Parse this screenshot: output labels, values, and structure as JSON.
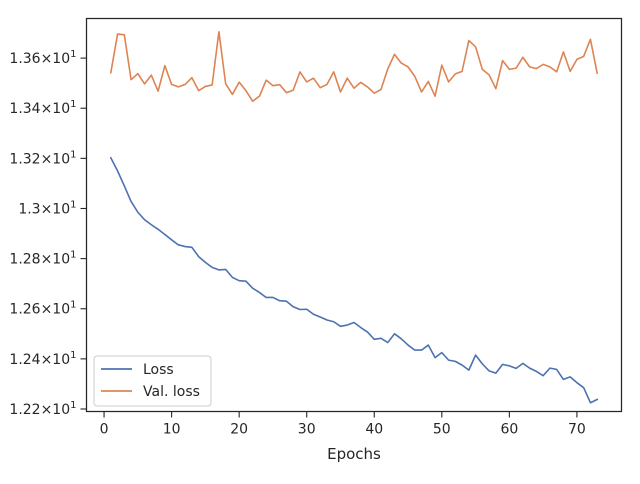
{
  "chart_data": {
    "type": "line",
    "title": "",
    "xlabel": "Epochs",
    "ylabel": "",
    "xlim": [
      -2.6,
      76.6
    ],
    "ylim": [
      12.19,
      13.758
    ],
    "x_ticks": [
      0,
      10,
      20,
      30,
      40,
      50,
      60,
      70
    ],
    "y_ticks": [
      {
        "value": 12.2,
        "mant": "1.22",
        "exp": "1"
      },
      {
        "value": 12.4,
        "mant": "1.24",
        "exp": "1"
      },
      {
        "value": 12.6,
        "mant": "1.26",
        "exp": "1"
      },
      {
        "value": 12.8,
        "mant": "1.28",
        "exp": "1"
      },
      {
        "value": 13.0,
        "mant": "1.3",
        "exp": "1"
      },
      {
        "value": 13.2,
        "mant": "1.32",
        "exp": "1"
      },
      {
        "value": 13.4,
        "mant": "1.34",
        "exp": "1"
      },
      {
        "value": 13.6,
        "mant": "1.36",
        "exp": "1"
      }
    ],
    "legend_location": "lower-left",
    "grid": false,
    "x": [
      1,
      2,
      3,
      4,
      5,
      6,
      7,
      8,
      9,
      10,
      11,
      12,
      13,
      14,
      15,
      16,
      17,
      18,
      19,
      20,
      21,
      22,
      23,
      24,
      25,
      26,
      27,
      28,
      29,
      30,
      31,
      32,
      33,
      34,
      35,
      36,
      37,
      38,
      39,
      40,
      41,
      42,
      43,
      44,
      45,
      46,
      47,
      48,
      49,
      50,
      51,
      52,
      53,
      54,
      55,
      56,
      57,
      58,
      59,
      60,
      61,
      62,
      63,
      64,
      65,
      66,
      67,
      68,
      69,
      70,
      71,
      72,
      73
    ],
    "series": [
      {
        "name": "Loss",
        "color": "#4c72b0",
        "values": [
          13.202,
          13.15,
          13.09,
          13.028,
          12.985,
          12.955,
          12.935,
          12.917,
          12.896,
          12.875,
          12.855,
          12.848,
          12.845,
          12.808,
          12.785,
          12.765,
          12.755,
          12.757,
          12.725,
          12.712,
          12.71,
          12.682,
          12.665,
          12.645,
          12.645,
          12.632,
          12.63,
          12.608,
          12.597,
          12.598,
          12.578,
          12.567,
          12.555,
          12.548,
          12.53,
          12.535,
          12.545,
          12.525,
          12.507,
          12.478,
          12.482,
          12.465,
          12.5,
          12.48,
          12.455,
          12.435,
          12.435,
          12.455,
          12.405,
          12.425,
          12.395,
          12.39,
          12.375,
          12.355,
          12.415,
          12.38,
          12.352,
          12.343,
          12.378,
          12.372,
          12.362,
          12.382,
          12.363,
          12.35,
          12.333,
          12.363,
          12.358,
          12.318,
          12.328,
          12.305,
          12.285,
          12.225,
          12.238
        ]
      },
      {
        "name": "Val. loss",
        "color": "#dd8452",
        "values": [
          13.542,
          13.696,
          13.693,
          13.514,
          13.538,
          13.497,
          13.532,
          13.468,
          13.57,
          13.495,
          13.485,
          13.495,
          13.522,
          13.47,
          13.487,
          13.493,
          13.705,
          13.498,
          13.455,
          13.504,
          13.47,
          13.428,
          13.448,
          13.512,
          13.49,
          13.494,
          13.462,
          13.472,
          13.545,
          13.505,
          13.52,
          13.482,
          13.495,
          13.545,
          13.465,
          13.52,
          13.48,
          13.503,
          13.485,
          13.46,
          13.475,
          13.557,
          13.615,
          13.58,
          13.565,
          13.527,
          13.465,
          13.507,
          13.448,
          13.572,
          13.505,
          13.537,
          13.547,
          13.67,
          13.645,
          13.555,
          13.533,
          13.478,
          13.59,
          13.555,
          13.56,
          13.603,
          13.565,
          13.558,
          13.575,
          13.565,
          13.545,
          13.625,
          13.547,
          13.595,
          13.607,
          13.675,
          13.54
        ]
      }
    ]
  }
}
